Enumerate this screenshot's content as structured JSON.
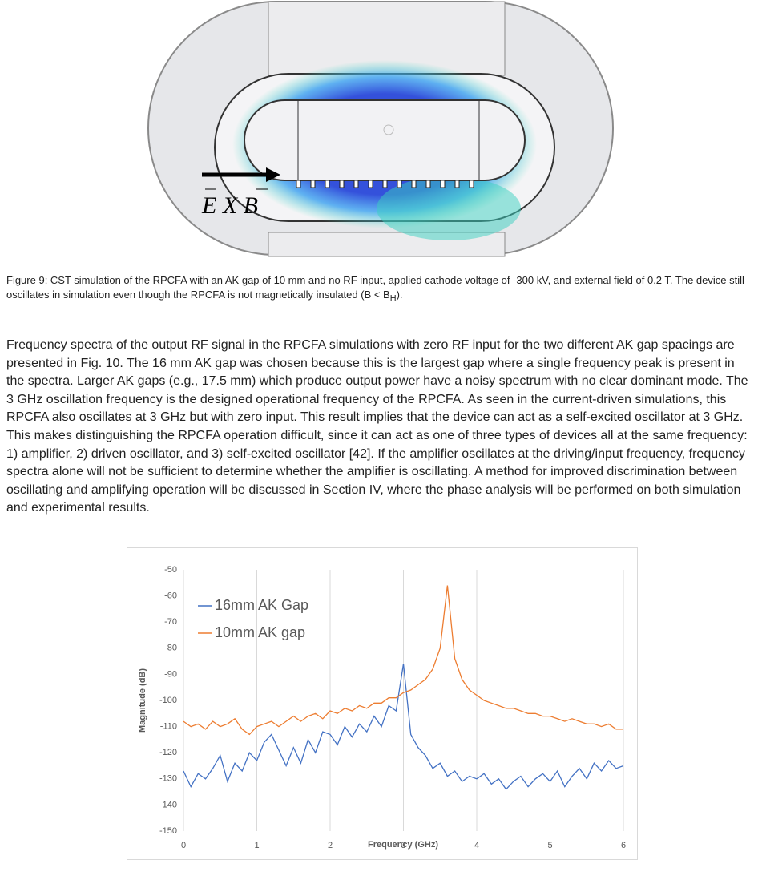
{
  "figure": {
    "label": "E X B"
  },
  "caption": {
    "text": "Figure 9: CST simulation of the RPCFA with an AK gap of 10 mm and no RF input, applied cathode voltage of -300 kV, and external field of 0.2 T. The device still oscillates in simulation even though the RPCFA is not magnetically insulated (B < B",
    "sub": "H",
    "end": ")."
  },
  "paragraph": "Frequency spectra of the output RF signal in the RPCFA simulations with zero RF input for the two different AK gap spacings are presented in Fig. 10. The 16 mm AK gap was chosen because this is the largest gap where a single frequency peak is present in the spectra. Larger AK gaps (e.g., 17.5 mm) which produce output power have a noisy spectrum with no clear dominant mode. The 3 GHz oscillation frequency is the designed operational frequency of the RPCFA. As seen in the current-driven simulations, this RPCFA also oscillates at 3 GHz but with zero input. This result implies that the device can act as a self-excited oscillator at 3 GHz. This makes distinguishing the RPCFA operation difficult, since it can act as one of three types of devices all at the same frequency: 1) amplifier, 2) driven oscillator, and 3) self-excited oscillator [42]. If the amplifier oscillates at the driving/input frequency, frequency spectra alone will not be sufficient to determine whether the amplifier is oscillating. A method for improved discrimination between oscillating and amplifying operation will be discussed in Section IV, where the phase analysis will be performed on both simulation and experimental results.",
  "chart_data": {
    "type": "line",
    "x_label": "Frequency (GHz)",
    "y_label": "Magnitude (dB)",
    "x": [
      0,
      0.1,
      0.2,
      0.3,
      0.4,
      0.5,
      0.6,
      0.7,
      0.8,
      0.9,
      1,
      1.1,
      1.2,
      1.3,
      1.4,
      1.5,
      1.6,
      1.7,
      1.8,
      1.9,
      2,
      2.1,
      2.2,
      2.3,
      2.4,
      2.5,
      2.6,
      2.7,
      2.8,
      2.9,
      3,
      3.1,
      3.2,
      3.3,
      3.4,
      3.5,
      3.6,
      3.7,
      3.8,
      3.9,
      4,
      4.1,
      4.2,
      4.3,
      4.4,
      4.5,
      4.6,
      4.7,
      4.8,
      4.9,
      5,
      5.1,
      5.2,
      5.3,
      5.4,
      5.5,
      5.6,
      5.7,
      5.8,
      5.9,
      6
    ],
    "series": [
      {
        "name": "16mm AK Gap",
        "color": "#4472c4",
        "values": [
          -127,
          -133,
          -128,
          -130,
          -126,
          -121,
          -131,
          -124,
          -127,
          -120,
          -123,
          -116,
          -113,
          -119,
          -125,
          -118,
          -124,
          -115,
          -120,
          -112,
          -113,
          -117,
          -110,
          -114,
          -109,
          -112,
          -106,
          -110,
          -102,
          -104,
          -86,
          -113,
          -118,
          -121,
          -126,
          -124,
          -129,
          -127,
          -131,
          -129,
          -130,
          -128,
          -132,
          -130,
          -134,
          -131,
          -129,
          -133,
          -130,
          -128,
          -131,
          -127,
          -133,
          -129,
          -126,
          -130,
          -124,
          -127,
          -123,
          -126,
          -125
        ]
      },
      {
        "name": "10mm AK gap",
        "color": "#ed7d31",
        "values": [
          -108,
          -110,
          -109,
          -111,
          -108,
          -110,
          -109,
          -107,
          -111,
          -113,
          -110,
          -109,
          -108,
          -110,
          -108,
          -106,
          -108,
          -106,
          -105,
          -107,
          -104,
          -105,
          -103,
          -104,
          -102,
          -103,
          -101,
          -101,
          -99,
          -99,
          -97,
          -96,
          -94,
          -92,
          -88,
          -80,
          -56,
          -84,
          -92,
          -96,
          -98,
          -100,
          -101,
          -102,
          -103,
          -103,
          -104,
          -105,
          -105,
          -106,
          -106,
          -107,
          -108,
          -107,
          -108,
          -109,
          -109,
          -110,
          -109,
          -111,
          -111
        ]
      }
    ],
    "xlim": [
      0,
      6
    ],
    "xticks": [
      0,
      1,
      2,
      3,
      4,
      5,
      6
    ],
    "ylim": [
      -150,
      -50
    ],
    "yticks": [
      -150,
      -140,
      -130,
      -120,
      -110,
      -100,
      -90,
      -80,
      -70,
      -60,
      -50
    ],
    "grid": "x",
    "legend": "top-left"
  }
}
